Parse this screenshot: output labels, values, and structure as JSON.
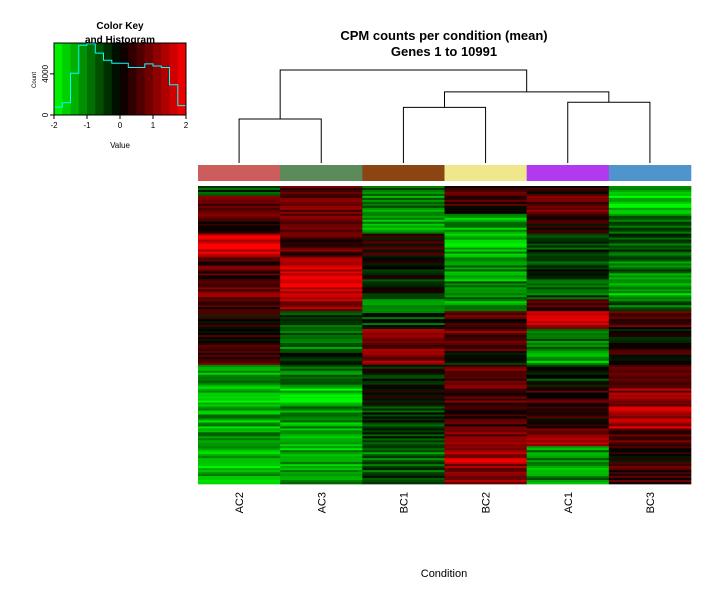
{
  "chart_data": {
    "type": "heatmap",
    "title": "CPM counts per condition (mean)",
    "subtitle": "Genes 1 to 10991",
    "xlabel": "Condition",
    "columns": [
      "AC2",
      "AC3",
      "BC1",
      "BC2",
      "AC1",
      "BC3"
    ],
    "column_colors": [
      "#cd5c5c",
      "#5b8a5b",
      "#8b4513",
      "#f0e68c",
      "#b23aee",
      "#4f94cd"
    ],
    "row_count": 10991,
    "value_range": [
      -2,
      2
    ],
    "color_scale": {
      "low": "#00ff00",
      "mid": "#000000",
      "high": "#ff0000"
    },
    "dendrogram": {
      "order": [
        "AC2",
        "AC3",
        "BC1",
        "BC2",
        "AC1",
        "BC3"
      ],
      "merges": [
        {
          "left": "AC2",
          "right": "AC3",
          "height": 0.32
        },
        {
          "left": "BC1",
          "right": "BC2",
          "height": 0.41
        },
        {
          "left": "AC1",
          "right": "BC3",
          "height": 0.45
        },
        {
          "left": [
            "BC1",
            "BC2"
          ],
          "right": [
            "AC1",
            "BC3"
          ],
          "height": 0.53
        },
        {
          "left": [
            "AC2",
            "AC3"
          ],
          "right": [
            "BC1",
            "BC2",
            "AC1",
            "BC3"
          ],
          "height": 0.7
        }
      ]
    },
    "row_blocks": [
      {
        "to": 0.03,
        "v": [
          -0.6,
          0.5,
          -0.8,
          0.6,
          0.4,
          -1.4
        ]
      },
      {
        "to": 0.09,
        "v": [
          0.7,
          0.9,
          -1.0,
          0.4,
          0.7,
          -1.6
        ]
      },
      {
        "to": 0.16,
        "v": [
          0.5,
          1.0,
          -1.4,
          -1.3,
          0.3,
          -0.8
        ]
      },
      {
        "to": 0.24,
        "v": [
          1.7,
          0.6,
          0.2,
          -1.4,
          -0.4,
          -0.6
        ]
      },
      {
        "to": 0.32,
        "v": [
          0.6,
          1.6,
          -0.2,
          -1.2,
          -0.4,
          -0.9
        ]
      },
      {
        "to": 0.38,
        "v": [
          0.9,
          1.7,
          -0.3,
          -1.0,
          -0.7,
          -1.3
        ]
      },
      {
        "to": 0.42,
        "v": [
          0.3,
          1.2,
          -1.4,
          -1.2,
          0.7,
          -0.7
        ]
      },
      {
        "to": 0.48,
        "v": [
          0.2,
          -0.6,
          -0.5,
          0.5,
          1.4,
          0.5
        ]
      },
      {
        "to": 0.55,
        "v": [
          0.3,
          -1.0,
          0.9,
          0.8,
          -1.0,
          0.1
        ]
      },
      {
        "to": 0.6,
        "v": [
          0.6,
          -0.4,
          1.0,
          -0.3,
          -1.4,
          0.3
        ]
      },
      {
        "to": 0.67,
        "v": [
          -1.2,
          -1.0,
          -0.3,
          0.8,
          -0.3,
          0.9
        ]
      },
      {
        "to": 0.74,
        "v": [
          -1.4,
          -1.5,
          -0.1,
          0.6,
          0.5,
          1.1
        ]
      },
      {
        "to": 0.81,
        "v": [
          -1.3,
          -1.2,
          -0.4,
          0.4,
          0.3,
          1.4
        ]
      },
      {
        "to": 0.87,
        "v": [
          -1.2,
          -1.4,
          -0.6,
          0.8,
          1.2,
          0.6
        ]
      },
      {
        "to": 0.93,
        "v": [
          -1.3,
          -1.3,
          -0.9,
          1.4,
          -1.1,
          0.2
        ]
      },
      {
        "to": 1.0,
        "v": [
          -1.5,
          -1.3,
          -0.7,
          1.1,
          -1.1,
          0.6
        ]
      }
    ],
    "color_key": {
      "title": "Color Key",
      "subtitle": "and Histogram",
      "xlabel": "Value",
      "ylabel": "Count",
      "x_ticks": [
        "-2",
        "-1",
        "0",
        "1",
        "2"
      ],
      "y_ticks": [
        "0",
        "4000"
      ],
      "histogram_step": [
        0.11,
        0.17,
        0.58,
        0.97,
        0.99,
        0.86,
        0.76,
        0.72,
        0.72,
        0.66,
        0.66,
        0.71,
        0.68,
        0.66,
        0.42,
        0.13
      ],
      "y_max": 7000
    }
  }
}
